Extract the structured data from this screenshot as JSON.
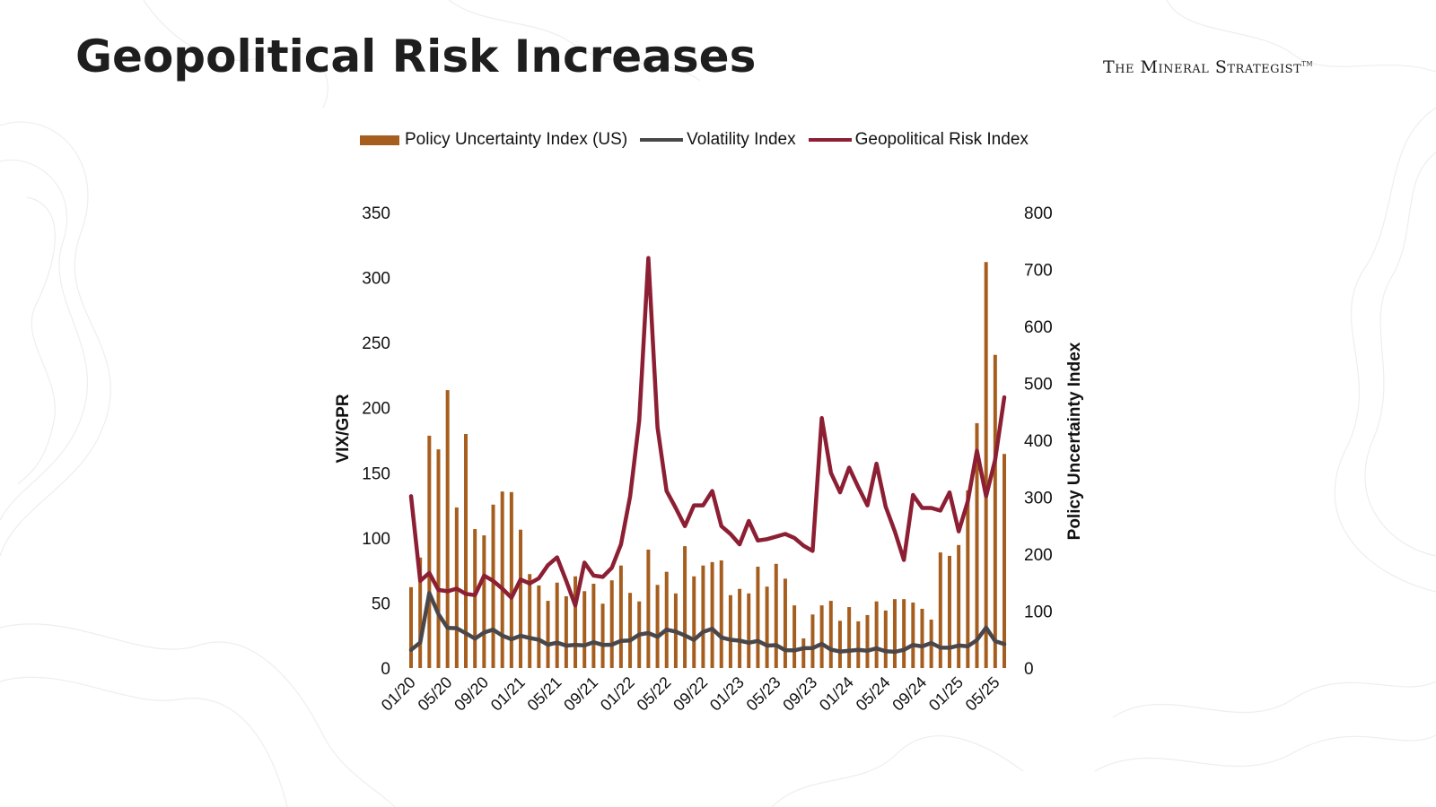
{
  "slide": {
    "title": "Geopolitical Risk Increases",
    "logo_text": "The Mineral Strategist",
    "logo_mark": "TM"
  },
  "colors": {
    "policy": "#A65E1F",
    "vix": "#4A474A",
    "gpr": "#8C1F33"
  },
  "chart_data": {
    "type": "bar+line",
    "title": "",
    "legend_position": "top",
    "legend": [
      "Policy Uncertainty Index (US)",
      "Volatility Index",
      "Geopolitical Risk Index"
    ],
    "ylabel_left": "VIX/GPR",
    "ylabel_right": "Policy Uncertainty Index",
    "ylim_left": [
      0,
      350
    ],
    "ylim_right": [
      0,
      800
    ],
    "yticks_left": [
      "0",
      "50",
      "100",
      "150",
      "200",
      "250",
      "300",
      "350"
    ],
    "yticks_right": [
      "0",
      "100",
      "200",
      "300",
      "400",
      "500",
      "600",
      "700",
      "800"
    ],
    "xtick_labels": [
      "01/20",
      "05/20",
      "09/20",
      "01/21",
      "05/21",
      "09/21",
      "01/22",
      "05/22",
      "09/22",
      "01/23",
      "05/23",
      "09/23",
      "01/24",
      "05/24",
      "09/24",
      "01/25",
      "05/25"
    ],
    "x_start": "01/20",
    "x_end": "06/25",
    "grid": false,
    "series": [
      {
        "name": "Policy Uncertainty Index (US)",
        "type": "bar",
        "axis": "right",
        "values": [
          142,
          194,
          408,
          384,
          488,
          282,
          411,
          244,
          233,
          287,
          310,
          309,
          243,
          165,
          145,
          118,
          150,
          126,
          161,
          135,
          148,
          113,
          154,
          180,
          132,
          117,
          208,
          146,
          169,
          131,
          214,
          161,
          180,
          186,
          189,
          128,
          139,
          131,
          178,
          143,
          183,
          157,
          110,
          52,
          94,
          110,
          118,
          83,
          107,
          82,
          93,
          117,
          101,
          121,
          121,
          115,
          104,
          85,
          203,
          197,
          216,
          312,
          430,
          713,
          550,
          376
        ]
      },
      {
        "name": "Volatility Index",
        "type": "line",
        "axis": "left",
        "values": [
          13.9,
          19.6,
          57.7,
          41.4,
          30.9,
          30.6,
          26.7,
          22.6,
          27.3,
          29.5,
          24.9,
          22.1,
          24.7,
          23.1,
          21.8,
          17.9,
          19.5,
          17.2,
          17.8,
          17.4,
          19.8,
          17.8,
          17.9,
          20.9,
          21.2,
          25.7,
          26.9,
          24.0,
          29.5,
          28.0,
          25.0,
          21.6,
          27.8,
          30.2,
          23.5,
          21.7,
          21.0,
          19.4,
          20.8,
          17.2,
          17.6,
          13.7,
          13.6,
          15.2,
          15.3,
          18.5,
          14.2,
          12.7,
          13.2,
          13.9,
          13.3,
          15.1,
          12.9,
          12.5,
          14.0,
          17.7,
          16.6,
          19.2,
          15.7,
          15.6,
          17.3,
          16.7,
          21.5,
          31.1,
          20.7,
          18.4
        ]
      },
      {
        "name": "Geopolitical Risk Index",
        "type": "line",
        "axis": "left",
        "values": [
          132,
          67,
          73,
          60,
          59,
          61,
          57,
          56,
          71,
          67,
          61,
          54,
          68,
          65,
          69,
          79,
          85,
          67,
          48,
          81,
          71,
          70,
          77,
          95,
          132,
          190,
          315,
          185,
          136,
          123,
          109,
          125,
          125,
          136,
          109,
          103,
          95,
          113,
          98,
          99,
          101,
          103,
          100,
          94,
          90,
          192,
          150,
          135,
          154,
          139,
          125,
          157,
          124,
          105,
          83,
          133,
          123,
          123,
          121,
          135,
          105,
          128,
          167,
          132,
          160,
          208
        ]
      }
    ]
  }
}
